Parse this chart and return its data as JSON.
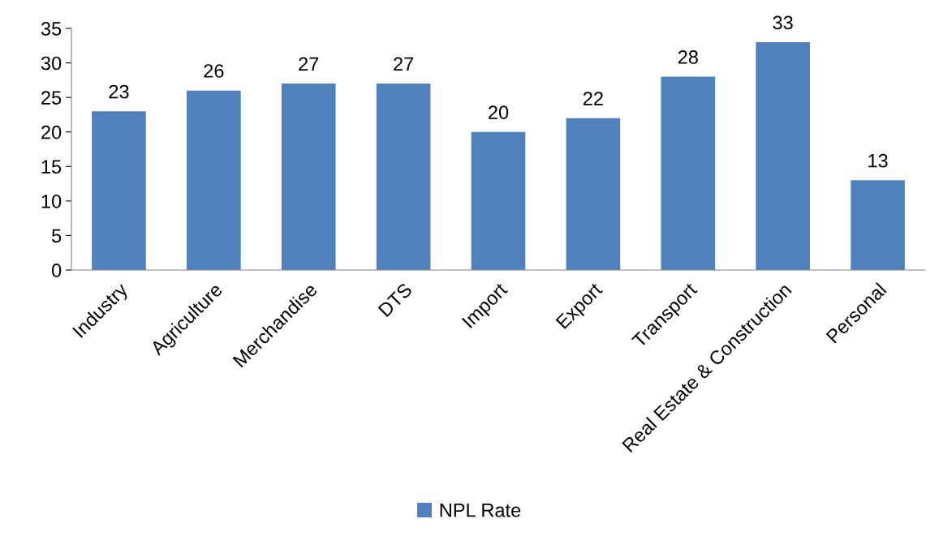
{
  "chart_data": {
    "type": "bar",
    "categories": [
      "Industry",
      "Agriculture",
      "Merchandise",
      "DTS",
      "Import",
      "Export",
      "Transport",
      "Real Estate & Construction",
      "Personal"
    ],
    "series": [
      {
        "name": "NPL Rate",
        "color": "#4f81bd",
        "values": [
          23,
          26,
          27,
          27,
          20,
          22,
          28,
          33,
          13
        ]
      }
    ],
    "ylim": [
      0,
      35
    ],
    "yticks": [
      0,
      5,
      10,
      15,
      20,
      25,
      30,
      35
    ],
    "data_labels": true,
    "grid": false,
    "legend": "bottom"
  }
}
